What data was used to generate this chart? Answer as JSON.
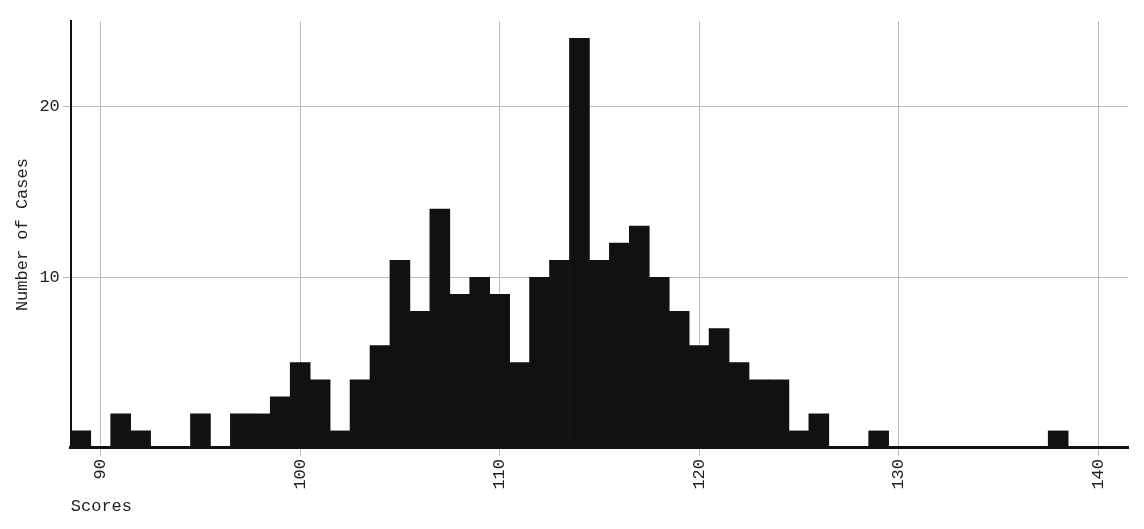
{
  "chart_data": {
    "type": "histogram",
    "xlabel": "Scores",
    "ylabel": "Number of Cases",
    "bins": [
      88.5,
      89.5,
      90.5,
      91.5,
      92.5,
      93.5,
      94.5,
      95.5,
      96.5,
      97.5,
      98.5,
      99.5,
      100.5,
      101.5,
      102.5,
      103.5,
      104.5,
      105.5,
      106.5,
      107.5,
      108.5,
      109.5,
      110.5,
      111.5,
      112.5,
      113.5,
      114.5,
      115.5,
      116.5,
      117.5,
      118.5,
      119.5,
      120.5,
      121.5,
      122.5,
      123.5,
      124.5,
      125.5,
      126.5,
      127.5,
      128.5,
      129.5,
      130.5,
      131.5,
      132.5,
      133.5,
      134.5,
      135.5,
      136.5,
      137.5,
      138.5
    ],
    "values": [
      1,
      0,
      2,
      1,
      0,
      0,
      2,
      0,
      2,
      2,
      3,
      5,
      4,
      1,
      4,
      6,
      11,
      8,
      14,
      9,
      10,
      9,
      5,
      10,
      11,
      24,
      11,
      12,
      13,
      10,
      8,
      6,
      7,
      5,
      4,
      4,
      1,
      2,
      0,
      0,
      1,
      0,
      0,
      0,
      0,
      0,
      0,
      0,
      0,
      1
    ],
    "color": "#111111",
    "xlim": [
      88.5,
      141.5
    ],
    "xticks": [
      90,
      100,
      110,
      120,
      130,
      140
    ],
    "ylim": [
      0,
      25
    ],
    "yticks": [
      10,
      20
    ],
    "grid": true
  }
}
